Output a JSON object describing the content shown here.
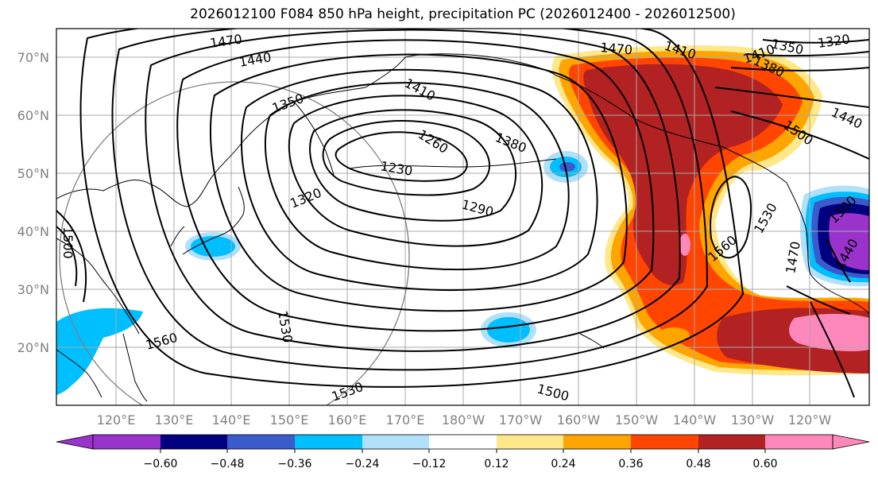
{
  "title": "2026012100 F084 850 hPa height, precipitation PC (2026012400 - 2026012500)",
  "map": {
    "lat_labels": [
      "70°N",
      "60°N",
      "50°N",
      "40°N",
      "30°N",
      "20°N"
    ],
    "lon_labels": [
      "120°E",
      "130°E",
      "140°E",
      "150°E",
      "160°E",
      "170°E",
      "180°W",
      "170°W",
      "160°W",
      "150°W",
      "140°W",
      "130°W",
      "120°W"
    ],
    "contour_labels": [
      "1470",
      "1440",
      "1410",
      "1350",
      "1410",
      "1260",
      "1380",
      "1230",
      "1320",
      "1290",
      "1470",
      "1410",
      "1380",
      "1350",
      "1320",
      "1440",
      "1500",
      "1560",
      "1530",
      "1500",
      "1470",
      "1440",
      "1500",
      "1560",
      "1530",
      "1530",
      "1500"
    ],
    "shading_colors": {
      "strong_negative": "#9933cc",
      "negative_4": "#000080",
      "negative_3": "#3a5bcc",
      "negative_2": "#00bfff",
      "negative_1": "#b0e0fa",
      "positive_1": "#ffe88a",
      "positive_2": "#ffa500",
      "positive_3": "#ff4500",
      "positive_4": "#b22222",
      "strong_positive": "#ff88bb"
    }
  },
  "colorbar": {
    "ticks": [
      "−0.60",
      "−0.48",
      "−0.36",
      "−0.24",
      "−0.12",
      "0.12",
      "0.24",
      "0.36",
      "0.48",
      "0.60"
    ],
    "colors": [
      "#9933cc",
      "#000080",
      "#3a5bcc",
      "#00bfff",
      "#b0e0fa",
      "#ffffff",
      "#ffe88a",
      "#ffa500",
      "#ff4500",
      "#b22222",
      "#ff88bb"
    ]
  }
}
